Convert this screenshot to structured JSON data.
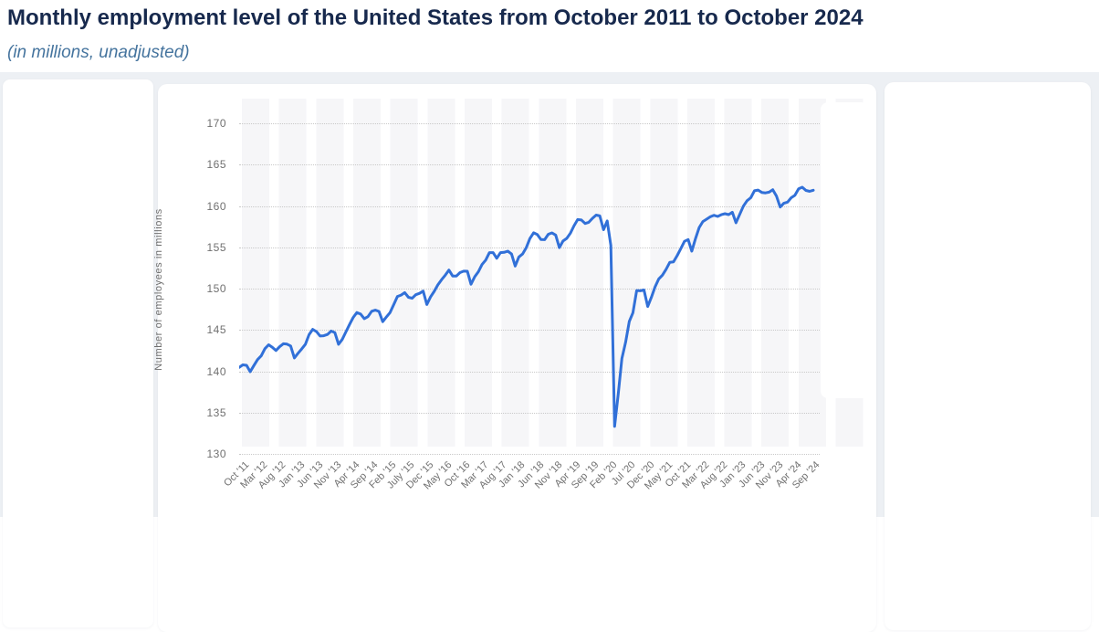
{
  "page": {
    "title": "Monthly employment level of the United States from October 2011 to October 2024",
    "subtitle": "(in millions, unadjusted)"
  },
  "colors": {
    "title_text": "#17294d",
    "subtitle_text": "#45749e",
    "content_background": "#edf0f4",
    "card_background": "#ffffff",
    "line": "#3170d8",
    "gridline": "#c9c9c9",
    "axis_text": "#707070",
    "stripe_band": "#f6f6f8"
  },
  "chart_data": {
    "type": "line",
    "title": "Monthly employment level of the United States from October 2011 to October 2024",
    "subtitle": "(in millions, unadjusted)",
    "ylabel": "Number of employees in millions",
    "xlabel": "",
    "unit": "millions of employees",
    "start_month": "October 2011",
    "end_month": "October 2024",
    "ylim": [
      130,
      170
    ],
    "y_ticks": [
      130,
      135,
      140,
      145,
      150,
      155,
      160,
      165,
      170
    ],
    "grid": "horizontal-dotted",
    "legend": "none",
    "line_color": "#3170d8",
    "x_tick_labels": [
      "Oct '11",
      "Mar '12",
      "Aug '12",
      "Jan '13",
      "Jun '13",
      "Nov '13",
      "Apr '14",
      "Sep '14",
      "Feb '15",
      "July '15",
      "Dec '15",
      "May '16",
      "Oct '16",
      "Mar '17",
      "Aug '17",
      "Jan '18",
      "Jun '18",
      "Nov '18",
      "Apr '19",
      "Sep '19",
      "Feb '20",
      "Jul '20",
      "Dec '20",
      "May '21",
      "Oct '21",
      "Mar '22",
      "Aug '22",
      "Jan '23",
      "Jun '23",
      "Nov '23",
      "Apr '24",
      "Sep '24"
    ],
    "x_tick_every_n_months": 5,
    "values": [
      140.46,
      140.77,
      140.72,
      139.94,
      140.68,
      141.41,
      141.87,
      142.73,
      143.2,
      142.91,
      142.51,
      142.97,
      143.33,
      143.28,
      143.06,
      141.61,
      142.18,
      142.7,
      143.27,
      144.43,
      145.07,
      144.8,
      144.27,
      144.3,
      144.45,
      144.86,
      144.69,
      143.26,
      143.84,
      144.75,
      145.67,
      146.52,
      147.1,
      146.92,
      146.37,
      146.61,
      147.26,
      147.39,
      147.24,
      146.0,
      146.56,
      147.09,
      148.06,
      149.05,
      149.21,
      149.51,
      148.95,
      148.83,
      149.26,
      149.43,
      149.7,
      148.08,
      149.0,
      149.67,
      150.45,
      151.08,
      151.62,
      152.24,
      151.53,
      151.51,
      151.93,
      152.11,
      152.1,
      150.53,
      151.44,
      152.04,
      152.92,
      153.45,
      154.35,
      154.35,
      153.67,
      154.35,
      154.39,
      154.53,
      154.19,
      152.73,
      153.82,
      154.19,
      154.94,
      156.06,
      156.75,
      156.55,
      155.93,
      155.92,
      156.58,
      156.74,
      156.48,
      154.96,
      155.76,
      156.08,
      156.71,
      157.61,
      158.35,
      158.3,
      157.88,
      158.02,
      158.51,
      158.89,
      158.8,
      157.13,
      158.19,
      155.23,
      133.33,
      137.24,
      141.54,
      143.53,
      146.02,
      147.08,
      149.77,
      149.73,
      149.83,
      147.83,
      148.94,
      150.19,
      151.17,
      151.62,
      152.33,
      153.18,
      153.23,
      153.98,
      154.83,
      155.72,
      155.93,
      154.53,
      156.07,
      157.39,
      158.11,
      158.4,
      158.68,
      158.87,
      158.73,
      158.94,
      159.06,
      158.95,
      159.24,
      157.97,
      158.98,
      159.98,
      160.63,
      161.0,
      161.83,
      161.92,
      161.64,
      161.58,
      161.67,
      161.97,
      161.18,
      159.87,
      160.32,
      160.46,
      161.0,
      161.28,
      162.08,
      162.26,
      161.88,
      161.77,
      161.9
    ]
  }
}
